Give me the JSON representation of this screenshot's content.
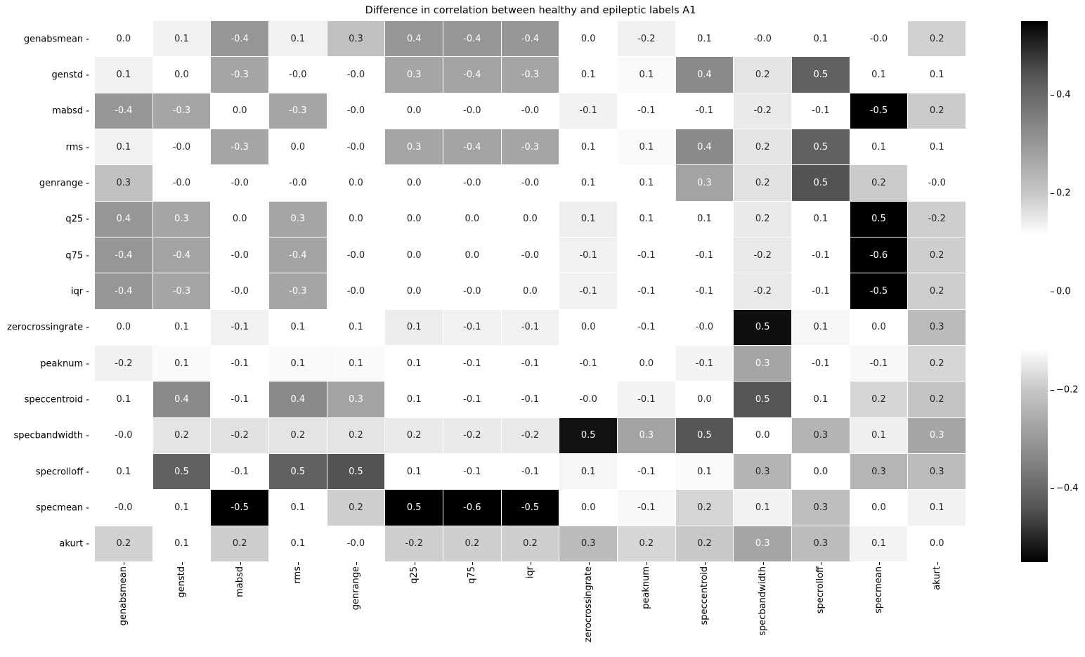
{
  "chart_data": {
    "type": "heatmap",
    "title": "Difference in correlation between healthy and epileptic labels A1",
    "xlabel": "",
    "ylabel": "",
    "rows": [
      "genabsmean",
      "genstd",
      "mabsd",
      "rms",
      "genrange",
      "q25",
      "q75",
      "iqr",
      "zerocrossingrate",
      "peaknum",
      "speccentroid",
      "specbandwidth",
      "specrolloff",
      "specmean",
      "akurt"
    ],
    "columns": [
      "genabsmean",
      "genstd",
      "mabsd",
      "rms",
      "genrange",
      "q25",
      "q75",
      "iqr",
      "zerocrossingrate",
      "peaknum",
      "speccentroid",
      "specbandwidth",
      "specrolloff",
      "specmean",
      "akurt"
    ],
    "labels": [
      [
        "0.0",
        "0.1",
        "-0.4",
        "0.1",
        "0.3",
        "0.4",
        "-0.4",
        "-0.4",
        "0.0",
        "-0.2",
        "0.1",
        "-0.0",
        "0.1",
        "-0.0",
        "0.2"
      ],
      [
        "0.1",
        "0.0",
        "-0.3",
        "-0.0",
        "-0.0",
        "0.3",
        "-0.4",
        "-0.3",
        "0.1",
        "0.1",
        "0.4",
        "0.2",
        "0.5",
        "0.1",
        "0.1"
      ],
      [
        "-0.4",
        "-0.3",
        "0.0",
        "-0.3",
        "-0.0",
        "0.0",
        "-0.0",
        "-0.0",
        "-0.1",
        "-0.1",
        "-0.1",
        "-0.2",
        "-0.1",
        "-0.5",
        "0.2"
      ],
      [
        "0.1",
        "-0.0",
        "-0.3",
        "0.0",
        "-0.0",
        "0.3",
        "-0.4",
        "-0.3",
        "0.1",
        "0.1",
        "0.4",
        "0.2",
        "0.5",
        "0.1",
        "0.1"
      ],
      [
        "0.3",
        "-0.0",
        "-0.0",
        "-0.0",
        "0.0",
        "0.0",
        "-0.0",
        "-0.0",
        "0.1",
        "0.1",
        "0.3",
        "0.2",
        "0.5",
        "0.2",
        "-0.0"
      ],
      [
        "0.4",
        "0.3",
        "0.0",
        "0.3",
        "0.0",
        "0.0",
        "0.0",
        "0.0",
        "0.1",
        "0.1",
        "0.1",
        "0.2",
        "0.1",
        "0.5",
        "-0.2"
      ],
      [
        "-0.4",
        "-0.4",
        "-0.0",
        "-0.4",
        "-0.0",
        "0.0",
        "0.0",
        "-0.0",
        "-0.1",
        "-0.1",
        "-0.1",
        "-0.2",
        "-0.1",
        "-0.6",
        "0.2"
      ],
      [
        "-0.4",
        "-0.3",
        "-0.0",
        "-0.3",
        "-0.0",
        "0.0",
        "-0.0",
        "0.0",
        "-0.1",
        "-0.1",
        "-0.1",
        "-0.2",
        "-0.1",
        "-0.5",
        "0.2"
      ],
      [
        "0.0",
        "0.1",
        "-0.1",
        "0.1",
        "0.1",
        "0.1",
        "-0.1",
        "-0.1",
        "0.0",
        "-0.1",
        "-0.0",
        "0.5",
        "0.1",
        "0.0",
        "0.3"
      ],
      [
        "-0.2",
        "0.1",
        "-0.1",
        "0.1",
        "0.1",
        "0.1",
        "-0.1",
        "-0.1",
        "-0.1",
        "0.0",
        "-0.1",
        "0.3",
        "-0.1",
        "-0.1",
        "0.2"
      ],
      [
        "0.1",
        "0.4",
        "-0.1",
        "0.4",
        "0.3",
        "0.1",
        "-0.1",
        "-0.1",
        "-0.0",
        "-0.1",
        "0.0",
        "0.5",
        "0.1",
        "0.2",
        "0.2"
      ],
      [
        "-0.0",
        "0.2",
        "-0.2",
        "0.2",
        "0.2",
        "0.2",
        "-0.2",
        "-0.2",
        "0.5",
        "0.3",
        "0.5",
        "0.0",
        "0.3",
        "0.1",
        "0.3"
      ],
      [
        "0.1",
        "0.5",
        "-0.1",
        "0.5",
        "0.5",
        "0.1",
        "-0.1",
        "-0.1",
        "0.1",
        "-0.1",
        "0.1",
        "0.3",
        "0.0",
        "0.3",
        "0.3"
      ],
      [
        "-0.0",
        "0.1",
        "-0.5",
        "0.1",
        "0.2",
        "0.5",
        "-0.6",
        "-0.5",
        "0.0",
        "-0.1",
        "0.2",
        "0.1",
        "0.3",
        "0.0",
        "0.1"
      ],
      [
        "0.2",
        "0.1",
        "0.2",
        "0.1",
        "-0.0",
        "-0.2",
        "0.2",
        "0.2",
        "0.3",
        "0.2",
        "0.2",
        "0.3",
        "0.3",
        "0.1",
        "0.0"
      ]
    ],
    "cell_gray": [
      [
        255,
        241,
        150,
        241,
        193,
        150,
        150,
        150,
        255,
        240,
        255,
        255,
        255,
        255,
        210
      ],
      [
        241,
        255,
        165,
        255,
        255,
        165,
        163,
        165,
        255,
        250,
        138,
        228,
        97,
        255,
        255
      ],
      [
        150,
        165,
        255,
        165,
        255,
        255,
        255,
        255,
        242,
        255,
        255,
        234,
        255,
        0,
        203
      ],
      [
        241,
        255,
        165,
        255,
        255,
        165,
        163,
        165,
        255,
        250,
        138,
        228,
        97,
        255,
        255
      ],
      [
        193,
        255,
        255,
        255,
        255,
        255,
        255,
        255,
        255,
        255,
        163,
        225,
        83,
        203,
        255
      ],
      [
        150,
        165,
        255,
        165,
        255,
        255,
        255,
        255,
        238,
        255,
        255,
        234,
        255,
        0,
        206
      ],
      [
        150,
        163,
        255,
        163,
        255,
        255,
        255,
        255,
        241,
        255,
        255,
        233,
        255,
        0,
        206
      ],
      [
        150,
        165,
        255,
        165,
        255,
        255,
        255,
        255,
        241,
        255,
        255,
        233,
        255,
        0,
        206
      ],
      [
        255,
        255,
        241,
        255,
        255,
        237,
        241,
        241,
        255,
        255,
        255,
        15,
        246,
        255,
        187
      ],
      [
        240,
        250,
        255,
        250,
        250,
        255,
        255,
        255,
        255,
        255,
        244,
        165,
        255,
        248,
        214
      ],
      [
        255,
        138,
        255,
        138,
        163,
        255,
        255,
        255,
        255,
        244,
        255,
        86,
        255,
        214,
        196
      ],
      [
        255,
        228,
        226,
        228,
        228,
        234,
        233,
        233,
        17,
        163,
        86,
        255,
        180,
        239,
        165
      ],
      [
        255,
        97,
        255,
        97,
        83,
        255,
        255,
        255,
        246,
        255,
        250,
        180,
        255,
        181,
        188
      ],
      [
        255,
        255,
        0,
        255,
        206,
        0,
        0,
        0,
        255,
        248,
        213,
        242,
        190,
        255,
        242
      ],
      [
        210,
        255,
        205,
        255,
        255,
        206,
        206,
        206,
        187,
        214,
        200,
        165,
        188,
        243,
        255
      ]
    ],
    "colorbar": {
      "ticks": [
        "0.4",
        "0.2",
        "0.0",
        "−0.2",
        "−0.4"
      ],
      "tick_values": [
        0.4,
        0.2,
        0.0,
        -0.2,
        -0.4
      ],
      "range": [
        -0.55,
        0.55
      ],
      "colormap": "white near zero (|v|<0.12), gray ramp to black at extremes"
    }
  }
}
